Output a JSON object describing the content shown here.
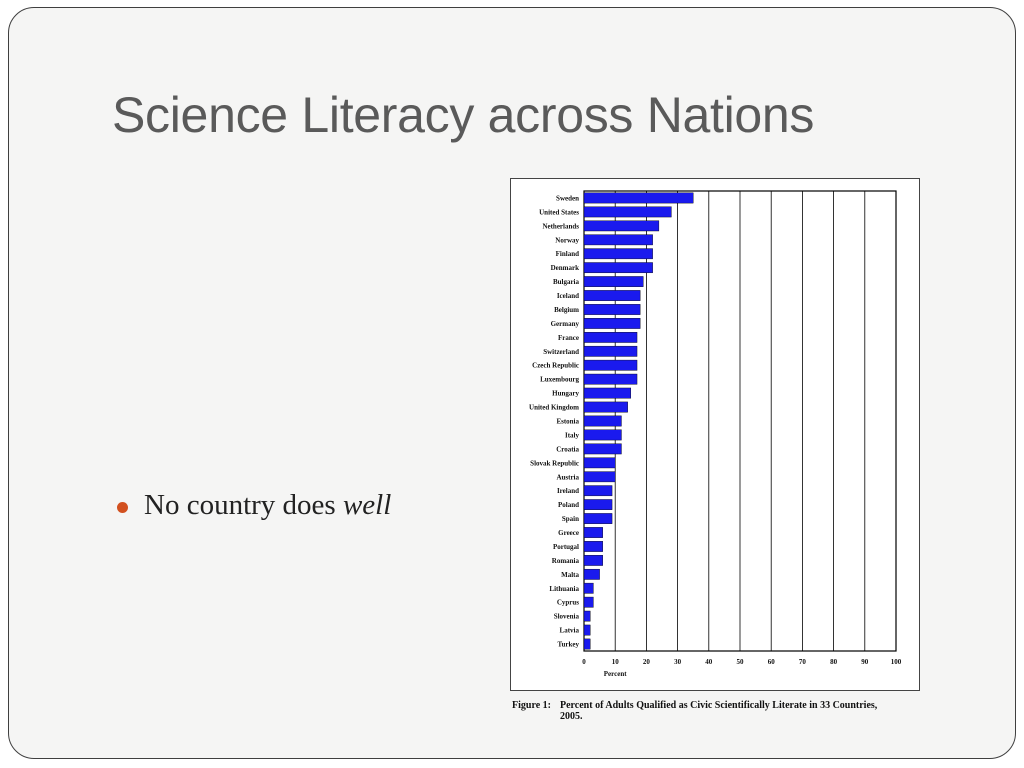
{
  "slide": {
    "title": "Science Literacy across Nations",
    "bullet_prefix": "No country does ",
    "bullet_emphasis": "well",
    "bullet_color": "#d2501f"
  },
  "figure": {
    "caption_lead": "Figure 1:",
    "caption_main": "Percent of Adults Qualified as Civic Scientifically Literate in 33 Countries,",
    "caption_cont": "2005."
  },
  "chart_data": {
    "type": "bar",
    "orientation": "horizontal",
    "title": "",
    "xlabel": "Percent",
    "ylabel": "",
    "xlim": [
      0,
      100
    ],
    "xticks": [
      0,
      10,
      20,
      30,
      40,
      50,
      60,
      70,
      80,
      90,
      100
    ],
    "grid": "vertical",
    "bar_color": "#1a1aee",
    "categories": [
      "Sweden",
      "United States",
      "Netherlands",
      "Norway",
      "Finland",
      "Denmark",
      "Bulgaria",
      "Iceland",
      "Belgium",
      "Germany",
      "France",
      "Switzerland",
      "Czech Republic",
      "Luxembourg",
      "Hungary",
      "United Kingdom",
      "Estonia",
      "Italy",
      "Croatia",
      "Slovak Republic",
      "Austria",
      "Ireland",
      "Poland",
      "Spain",
      "Greece",
      "Portugal",
      "Romania",
      "Malta",
      "Lithuania",
      "Cyprus",
      "Slovenia",
      "Latvia",
      "Turkey"
    ],
    "values": [
      35,
      28,
      24,
      22,
      22,
      22,
      19,
      18,
      18,
      18,
      17,
      17,
      17,
      17,
      15,
      14,
      12,
      12,
      12,
      10,
      10,
      9,
      9,
      9,
      6,
      6,
      6,
      5,
      3,
      3,
      2,
      2,
      2
    ]
  }
}
